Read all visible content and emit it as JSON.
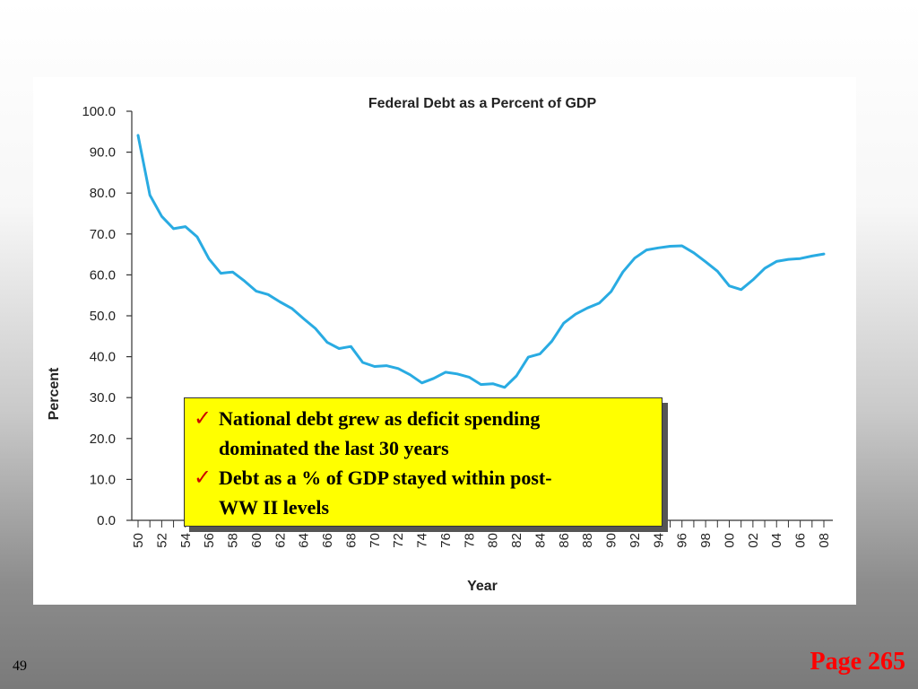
{
  "chart_data": {
    "type": "line",
    "title": "Federal Debt as a Percent of GDP",
    "xlabel": "Year",
    "ylabel": "Percent",
    "ylim": [
      0,
      100
    ],
    "yticks": [
      "0.0",
      "10.0",
      "20.0",
      "30.0",
      "40.0",
      "50.0",
      "60.0",
      "70.0",
      "80.0",
      "90.0",
      "100.0"
    ],
    "xticks": [
      "50",
      "52",
      "54",
      "56",
      "58",
      "60",
      "62",
      "64",
      "66",
      "68",
      "70",
      "72",
      "74",
      "76",
      "78",
      "80",
      "82",
      "84",
      "86",
      "88",
      "90",
      "92",
      "94",
      "96",
      "98",
      "00",
      "02",
      "04",
      "06",
      "08"
    ],
    "grid": false,
    "color": "#29abe2",
    "series": [
      {
        "x": [
          1950,
          1951,
          1952,
          1953,
          1954,
          1955,
          1956,
          1957,
          1958,
          1959,
          1960,
          1961,
          1962,
          1963,
          1964,
          1965,
          1966,
          1967,
          1968,
          1969,
          1970,
          1971,
          1972,
          1973,
          1974,
          1975,
          1976,
          1977,
          1978,
          1979,
          1980,
          1981,
          1982,
          1983,
          1984,
          1985,
          1986,
          1987,
          1988,
          1989,
          1990,
          1991,
          1992,
          1993,
          1994,
          1995,
          1996,
          1997,
          1998,
          1999,
          2000,
          2001,
          2002,
          2003,
          2004,
          2005,
          2006,
          2007,
          2008
        ],
        "values": [
          94.1,
          79.5,
          74.3,
          71.3,
          71.8,
          69.3,
          63.9,
          60.4,
          60.7,
          58.5,
          56.0,
          55.2,
          53.4,
          51.8,
          49.3,
          46.9,
          43.5,
          42.0,
          42.5,
          38.6,
          37.6,
          37.8,
          37.1,
          35.6,
          33.6,
          34.7,
          36.2,
          35.8,
          35.0,
          33.2,
          33.4,
          32.5,
          35.3,
          39.9,
          40.7,
          43.8,
          48.2,
          50.4,
          51.9,
          53.1,
          55.9,
          60.7,
          64.1,
          66.1,
          66.6,
          67.0,
          67.1,
          65.4,
          63.2,
          60.9,
          57.3,
          56.4,
          58.8,
          61.6,
          63.3,
          63.8,
          64.0,
          64.6,
          65.1
        ]
      }
    ]
  },
  "callout": {
    "items": [
      {
        "line1": "National debt grew as deficit spending",
        "line2": "dominated the last 30 years"
      },
      {
        "line1": "Debt as a % of GDP stayed within post-",
        "line2": "WW II levels"
      }
    ]
  },
  "slide_number": "49",
  "page_ref": "Page 265"
}
